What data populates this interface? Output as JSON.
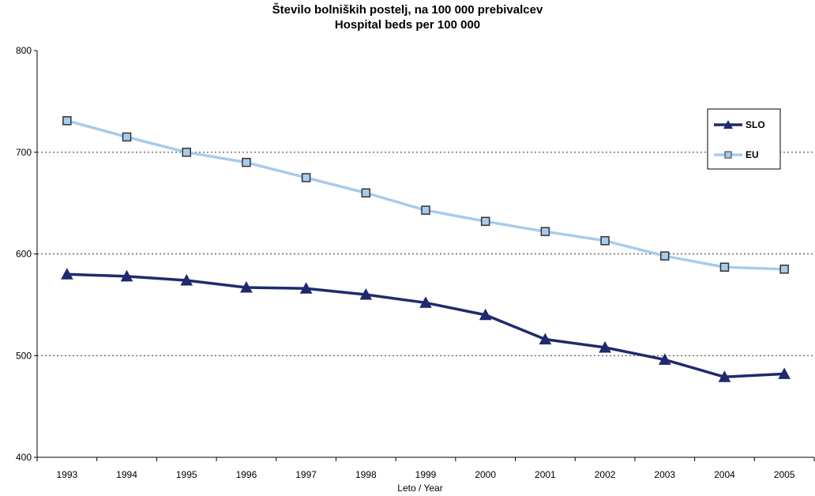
{
  "chart_data": {
    "type": "line",
    "title": "Število bolniških postelj, na 100 000 prebivalcev",
    "subtitle": "Hospital beds per 100 000",
    "xlabel": "Leto / Year",
    "ylabel": "",
    "categories": [
      "1993",
      "1994",
      "1995",
      "1996",
      "1997",
      "1998",
      "1999",
      "2000",
      "2001",
      "2002",
      "2003",
      "2004",
      "2005"
    ],
    "ylim": [
      400,
      800
    ],
    "yticks": [
      "400",
      "500",
      "600",
      "700",
      "800"
    ],
    "grid": "horizontal dotted",
    "legend_position": "right",
    "series": [
      {
        "name": "SLO",
        "marker": "triangle",
        "color": "#1F2A6E",
        "values": [
          580,
          578,
          574,
          567,
          566,
          560,
          552,
          540,
          516,
          508,
          496,
          479,
          482
        ]
      },
      {
        "name": "EU",
        "marker": "square",
        "color": "#A8CBEB",
        "values": [
          731,
          715,
          700,
          690,
          675,
          660,
          643,
          632,
          622,
          613,
          598,
          587,
          585
        ]
      }
    ]
  }
}
